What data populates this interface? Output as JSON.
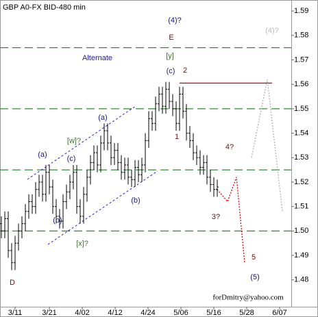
{
  "chart_data": {
    "type": "ohlc",
    "title": "GBP A0-FX BID-480 min",
    "bar_color": "#000000",
    "x": [
      0,
      1,
      2,
      3,
      4,
      5,
      6,
      7,
      8,
      9,
      10,
      11,
      12,
      13,
      14,
      15,
      16,
      17,
      18,
      19,
      20,
      21,
      22,
      23,
      24,
      25,
      26,
      27,
      28,
      29,
      30,
      31,
      32,
      33,
      34,
      35,
      36,
      37,
      38,
      39,
      40,
      41,
      42,
      43,
      44,
      45,
      46,
      47,
      48,
      49,
      50,
      51,
      52,
      53,
      54,
      55,
      56,
      57,
      58,
      59,
      60,
      61,
      62,
      63
    ],
    "open": [
      1.503,
      1.5,
      1.505,
      1.492,
      1.487,
      1.495,
      1.5,
      1.503,
      1.508,
      1.512,
      1.51,
      1.517,
      1.52,
      1.515,
      1.524,
      1.518,
      1.51,
      1.506,
      1.504,
      1.512,
      1.516,
      1.52,
      1.524,
      1.51,
      1.506,
      1.515,
      1.522,
      1.528,
      1.532,
      1.527,
      1.536,
      1.541,
      1.536,
      1.53,
      1.533,
      1.528,
      1.524,
      1.527,
      1.522,
      1.521,
      1.526,
      1.523,
      1.527,
      1.537,
      1.546,
      1.544,
      1.552,
      1.556,
      1.551,
      1.558,
      1.553,
      1.55,
      1.544,
      1.556,
      1.549,
      1.54,
      1.537,
      1.532,
      1.53,
      1.526,
      1.528,
      1.522,
      1.519,
      1.517
    ],
    "high": [
      1.506,
      1.508,
      1.508,
      1.495,
      1.498,
      1.503,
      1.506,
      1.511,
      1.515,
      1.515,
      1.52,
      1.523,
      1.523,
      1.527,
      1.527,
      1.521,
      1.513,
      1.509,
      1.515,
      1.519,
      1.523,
      1.527,
      1.527,
      1.513,
      1.518,
      1.525,
      1.531,
      1.535,
      1.535,
      1.539,
      1.544,
      1.544,
      1.539,
      1.536,
      1.536,
      1.531,
      1.53,
      1.53,
      1.525,
      1.529,
      1.529,
      1.53,
      1.54,
      1.549,
      1.549,
      1.555,
      1.559,
      1.559,
      1.561,
      1.561,
      1.556,
      1.553,
      1.559,
      1.559,
      1.552,
      1.543,
      1.54,
      1.535,
      1.533,
      1.531,
      1.531,
      1.525,
      1.522,
      1.521
    ],
    "low": [
      1.497,
      1.497,
      1.489,
      1.484,
      1.484,
      1.492,
      1.497,
      1.5,
      1.505,
      1.507,
      1.507,
      1.514,
      1.512,
      1.512,
      1.515,
      1.507,
      1.503,
      1.501,
      1.501,
      1.509,
      1.513,
      1.517,
      1.507,
      1.503,
      1.503,
      1.512,
      1.519,
      1.525,
      1.524,
      1.524,
      1.533,
      1.533,
      1.527,
      1.527,
      1.525,
      1.521,
      1.521,
      1.519,
      1.518,
      1.518,
      1.52,
      1.52,
      1.524,
      1.534,
      1.541,
      1.541,
      1.549,
      1.548,
      1.548,
      1.55,
      1.547,
      1.541,
      1.541,
      1.546,
      1.537,
      1.534,
      1.529,
      1.527,
      1.523,
      1.523,
      1.519,
      1.516,
      1.514,
      1.514
    ],
    "close": [
      1.5,
      1.505,
      1.492,
      1.487,
      1.495,
      1.5,
      1.503,
      1.508,
      1.512,
      1.51,
      1.517,
      1.52,
      1.515,
      1.524,
      1.518,
      1.51,
      1.506,
      1.504,
      1.512,
      1.516,
      1.52,
      1.524,
      1.51,
      1.506,
      1.515,
      1.522,
      1.528,
      1.532,
      1.527,
      1.536,
      1.541,
      1.536,
      1.53,
      1.533,
      1.528,
      1.524,
      1.527,
      1.522,
      1.521,
      1.526,
      1.523,
      1.527,
      1.537,
      1.546,
      1.544,
      1.552,
      1.556,
      1.551,
      1.558,
      1.553,
      1.55,
      1.544,
      1.556,
      1.549,
      1.54,
      1.537,
      1.532,
      1.53,
      1.526,
      1.528,
      1.522,
      1.519,
      1.517,
      1.518
    ],
    "xlim": [
      -0.4,
      84.6
    ],
    "xticks": [
      {
        "value": 4,
        "label": "3/11"
      },
      {
        "value": 14,
        "label": "3/21"
      },
      {
        "value": 23.6,
        "label": "4/02"
      },
      {
        "value": 33.2,
        "label": "4/12"
      },
      {
        "value": 42.8,
        "label": "4/24"
      },
      {
        "value": 52.4,
        "label": "5/06"
      },
      {
        "value": 62,
        "label": "5/16"
      },
      {
        "value": 71.6,
        "label": "5/28"
      },
      {
        "value": 81.2,
        "label": "6/07"
      }
    ],
    "ylim": [
      1.469,
      1.5945
    ],
    "yticks": [
      1.59,
      1.58,
      1.57,
      1.56,
      1.55,
      1.54,
      1.53,
      1.52,
      1.51,
      {
        "value": 1.5,
        "label": "1.50"
      },
      1.49,
      1.48
    ],
    "levels": {
      "color": "#2e8b2e",
      "values": [
        1.575,
        1.55,
        1.525,
        1.5
      ]
    },
    "resistance": {
      "color": "#cc0000",
      "x": [
        52,
        79
      ],
      "y": [
        1.5605,
        1.5605
      ]
    },
    "channels": [
      {
        "color": "#2222cc",
        "x": [
          7.6,
          39.2
        ],
        "y": [
          1.5211,
          1.5511
        ]
      },
      {
        "color": "#2222cc",
        "x": [
          13.6,
          45.6
        ],
        "y": [
          1.4945,
          1.5245
        ]
      }
    ],
    "projections": [
      {
        "color": "#dd0000",
        "x": [
          63,
          66,
          68.6,
          71
        ],
        "y": [
          1.517,
          1.512,
          1.522,
          1.487
        ]
      },
      {
        "color": "#b0b0b0",
        "x": [
          73,
          77.6,
          82
        ],
        "y": [
          1.53,
          1.562,
          1.508
        ]
      }
    ],
    "annotations": [
      {
        "text": "(4)?",
        "color": "#141478"
      },
      {
        "text": "E",
        "color": "#6e0f0f"
      },
      {
        "text": "(4)?",
        "color": "#bbbbbb"
      },
      {
        "text": "[y]",
        "color": "#3a7a2a"
      },
      {
        "text": "Alternate",
        "color": "#1a1a9c"
      },
      {
        "text": "(c)",
        "color": "#1a1a7c"
      },
      {
        "text": "2",
        "color": "#6e0f0f"
      },
      {
        "text": "[w]?",
        "color": "#3a7a2a"
      },
      {
        "text": "(a)",
        "color": "#1a1a7c"
      },
      {
        "text": "1",
        "color": "#6e0f0f"
      },
      {
        "text": "4?",
        "color": "#6e0f0f"
      },
      {
        "text": "(a)",
        "color": "#1a1a7c"
      },
      {
        "text": "(c)",
        "color": "#1a1a7c"
      },
      {
        "text": "(b)",
        "color": "#1a1a7c"
      },
      {
        "text": "(b)",
        "color": "#1a1a7c"
      },
      {
        "text": "3?",
        "color": "#6e0f0f"
      },
      {
        "text": "[x]?",
        "color": "#3a7a2a"
      },
      {
        "text": "5",
        "color": "#6e0f0f"
      },
      {
        "text": "(5)",
        "color": "#141478"
      },
      {
        "text": "D",
        "color": "#6e0f0f"
      },
      {
        "text": "forDmitry@yahoo.com",
        "color": "#000000"
      }
    ]
  }
}
